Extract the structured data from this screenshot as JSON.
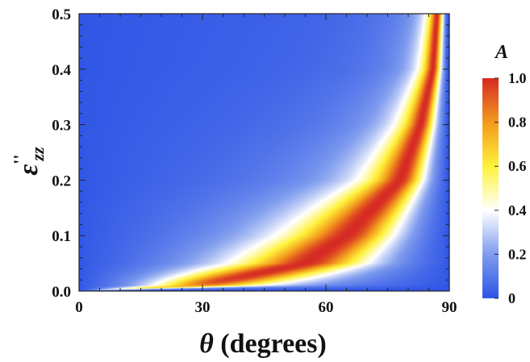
{
  "chart_data": {
    "type": "heatmap",
    "title": "",
    "x": {
      "label_symbol": "θ",
      "label_rest": " (degrees)",
      "range": [
        0,
        90
      ],
      "ticks": [
        0,
        30,
        60,
        90
      ]
    },
    "y": {
      "label_symbol": "ε",
      "label_superscript": "''",
      "label_subscript": "zz",
      "range": [
        0,
        0.5
      ],
      "ticks": [
        "0.0",
        "0.1",
        "0.2",
        "0.3",
        "0.4",
        "0.5"
      ]
    },
    "colorbar": {
      "title": "A",
      "range": [
        0,
        1
      ],
      "ticks": [
        "0",
        "0.2",
        "0.4",
        "0.6",
        "0.8",
        "1.0"
      ],
      "colors": [
        "#2e54e6",
        "#7f9cee",
        "#ffffff",
        "#fff23a",
        "#f39a1d",
        "#d62a24"
      ],
      "color_stops": [
        0,
        0.2,
        0.4,
        0.6,
        0.8,
        1.0
      ]
    },
    "description_model": {
      "quantity": "A",
      "peak_value": 1.0,
      "ridge_theta_at_eps": [
        [
          0.01,
          30
        ],
        [
          0.05,
          55
        ],
        [
          0.1,
          65
        ],
        [
          0.2,
          78
        ],
        [
          0.3,
          83
        ],
        [
          0.4,
          86
        ],
        [
          0.5,
          87
        ]
      ],
      "near_zero_eps_value": 0.0,
      "near_90_deg_value": 0.0
    }
  }
}
